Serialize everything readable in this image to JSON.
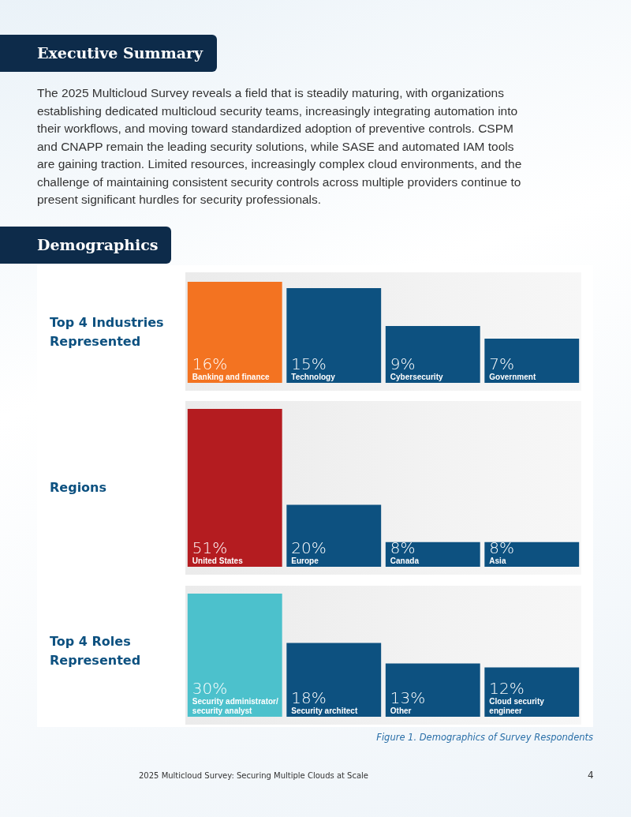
{
  "chart_data": [
    {
      "type": "bar",
      "title": "Top 4 Industries Represented",
      "annotations": [
        "Executive Summary",
        "The 2025 Multicloud Survey reveals a field that is steadily maturing, with organizations establishing dedicated multicloud security teams, increasingly integrating automation into their workflows, and moving toward standardized adoption of preventive controls. CSPM and CNAPP remain the leading security solutions, while SASE and automated IAM tools are gaining traction. Limited resources, increasingly complex cloud environments, and the challenge of maintaining consistent security controls across multiple providers continue to present significant hurdles for security professionals.",
        "Demographics"
      ],
      "categories": [
        "Banking and finance",
        "Technology",
        "Cybersecurity",
        "Government"
      ],
      "values": [
        16,
        15,
        9,
        7
      ],
      "value_labels": [
        "16%",
        "15%",
        "9%",
        "7%"
      ],
      "colors": [
        "#f37321",
        "#0d5180",
        "#0d5180",
        "#0d5180"
      ]
    },
    {
      "type": "bar",
      "title": "Regions",
      "categories": [
        "United States",
        "Europe",
        "Canada",
        "Asia"
      ],
      "values": [
        51,
        20,
        8,
        8
      ],
      "value_labels": [
        "51%",
        "20%",
        "8%",
        "8%"
      ],
      "colors": [
        "#b41c20",
        "#0d5180",
        "#0d5180",
        "#0d5180"
      ]
    },
    {
      "type": "bar",
      "title": "Top 4 Roles Represented",
      "annotations": [
        "Figure 1. Demographics of Survey Respondents",
        "2025 Multicloud Survey: Securing Multiple Clouds at Scale",
        "4"
      ],
      "categories": [
        "Security administrator/ security analyst",
        "Security architect",
        "Other",
        "Cloud security engineer"
      ],
      "values": [
        30,
        18,
        13,
        12
      ],
      "value_labels": [
        "30%",
        "18%",
        "13%",
        "12%"
      ],
      "colors": [
        "#4cc1cc",
        "#0d5180",
        "#0d5180",
        "#0d5180"
      ]
    }
  ]
}
